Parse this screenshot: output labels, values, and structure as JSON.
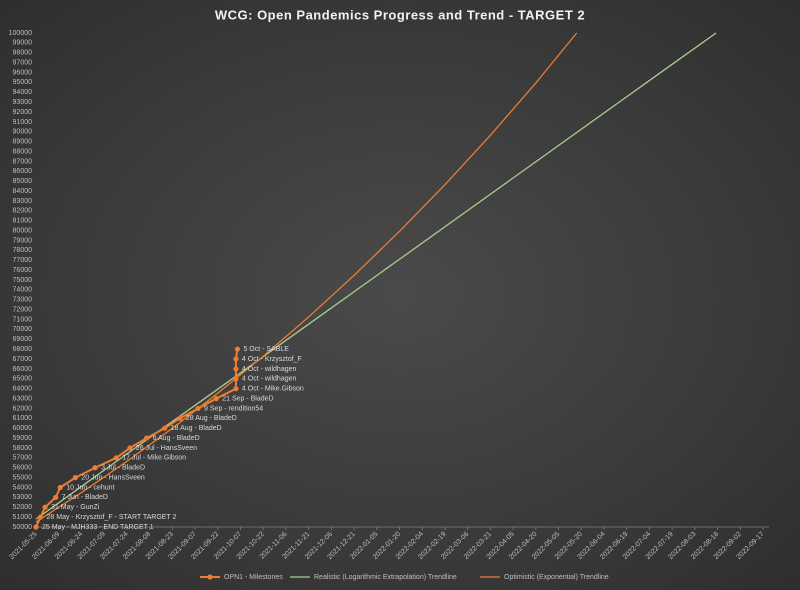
{
  "chart_data": {
    "type": "line",
    "title": "WCG: Open Pandemics Progress and Trend - TARGET 2",
    "xlim": [
      "2021-05-25",
      "2022-09-17"
    ],
    "xticks": [
      "2021-05-25",
      "2021-06-09",
      "2021-06-24",
      "2021-07-09",
      "2021-07-24",
      "2021-08-08",
      "2021-08-23",
      "2021-09-07",
      "2021-09-22",
      "2021-10-07",
      "2021-10-22",
      "2021-11-06",
      "2021-11-21",
      "2021-12-06",
      "2021-12-21",
      "2022-01-05",
      "2022-01-20",
      "2022-02-04",
      "2022-02-19",
      "2022-03-06",
      "2022-03-21",
      "2022-04-05",
      "2022-04-20",
      "2022-05-05",
      "2022-05-20",
      "2022-06-04",
      "2022-06-19",
      "2022-07-04",
      "2022-07-19",
      "2022-08-03",
      "2022-08-18",
      "2022-09-02",
      "2022-09-17"
    ],
    "ylim": [
      50000,
      100000
    ],
    "yticks": [
      50000,
      51000,
      52000,
      53000,
      54000,
      55000,
      56000,
      57000,
      58000,
      59000,
      60000,
      61000,
      62000,
      63000,
      64000,
      65000,
      66000,
      67000,
      68000,
      69000,
      70000,
      71000,
      72000,
      73000,
      74000,
      75000,
      76000,
      77000,
      78000,
      79000,
      80000,
      81000,
      82000,
      83000,
      84000,
      85000,
      86000,
      87000,
      88000,
      89000,
      90000,
      91000,
      92000,
      93000,
      94000,
      95000,
      96000,
      97000,
      98000,
      99000,
      100000
    ],
    "legend": "bottom",
    "series": [
      {
        "name": "OPN1 - Milestones",
        "color": "#ed7d31",
        "markers": true,
        "x": [
          "2021-05-25",
          "2021-05-28",
          "2021-05-31",
          "2021-06-07",
          "2021-06-10",
          "2021-06-20",
          "2021-07-03",
          "2021-07-17",
          "2021-07-26",
          "2021-08-06",
          "2021-08-18",
          "2021-08-28",
          "2021-09-09",
          "2021-09-21",
          "2021-10-04",
          "2021-10-04",
          "2021-10-04",
          "2021-10-04",
          "2021-10-05"
        ],
        "values": [
          50000,
          51000,
          52000,
          53000,
          54000,
          55000,
          56000,
          57000,
          58000,
          59000,
          60000,
          61000,
          62000,
          63000,
          64000,
          65000,
          66000,
          67000,
          68000
        ],
        "labels": [
          "25 May - MJH333 - END TARGET 1",
          "28 May - Krzysztof_F - START TARGET 2",
          "31 May - GunZi",
          "7 Jun - BladeD",
          "10 Jun - cehunt",
          "20 Jun - HansSveen",
          "3 Jul - BladeD",
          "17 Jul - Mike.Gibson",
          "26 Jul - HansSveen",
          "6 Aug - BladeD",
          "18 Aug - BladeD",
          "28 Aug - BladeD",
          "9 Sep - rendition54",
          "21 Sep - BladeD",
          "4 Oct - Mike.Gibson",
          "4 Oct - wildhagen",
          "4 Oct - wildhagen",
          "4 Oct - Krzysztof_F",
          "5 Oct - SABLE"
        ]
      },
      {
        "name": "Realistic (Logarithmic Extrapolation) Trendline",
        "color": "#a9d18e",
        "markers": false,
        "x": [
          "2021-05-25",
          "2021-07-24",
          "2021-09-22",
          "2021-11-21",
          "2022-01-20",
          "2022-03-21",
          "2022-05-20",
          "2022-07-19",
          "2022-08-17"
        ],
        "values": [
          50800,
          57400,
          63950,
          70530,
          77100,
          83680,
          90260,
          96830,
          100000
        ]
      },
      {
        "name": "Optimistic (Exponential) Trendline",
        "color": "#ed7d31",
        "markers": false,
        "x": [
          "2021-05-25",
          "2021-06-24",
          "2021-07-24",
          "2021-08-23",
          "2021-09-22",
          "2021-10-22",
          "2021-11-21",
          "2021-12-21",
          "2022-01-20",
          "2022-02-19",
          "2022-03-21",
          "2022-04-20",
          "2022-05-17"
        ],
        "values": [
          50500,
          53484,
          56640,
          59989,
          63534,
          67286,
          71261,
          75467,
          79926,
          84648,
          89643,
          94940,
          100000
        ]
      }
    ]
  }
}
